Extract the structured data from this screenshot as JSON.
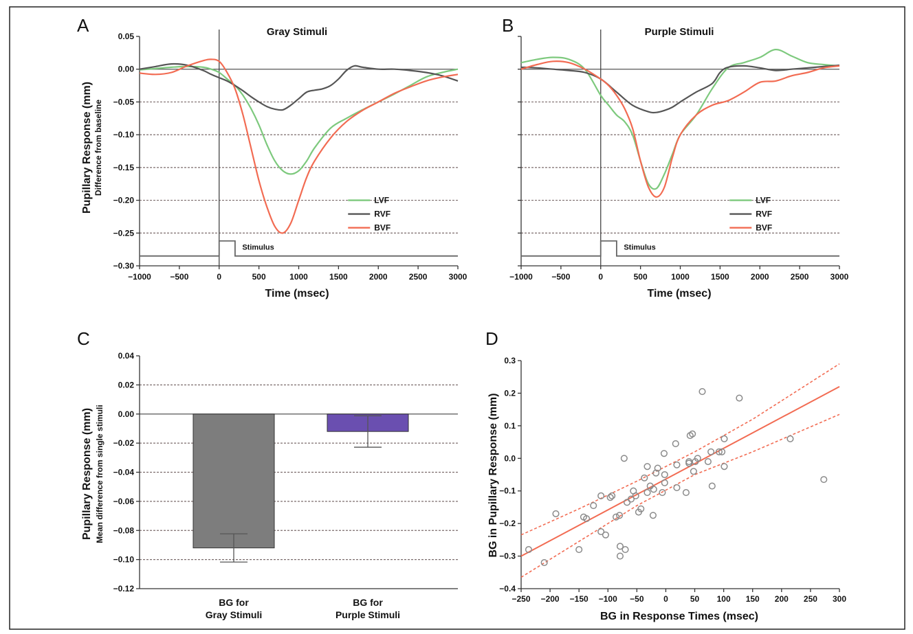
{
  "chart_data": [
    {
      "panel": "A",
      "type": "line",
      "title": "Gray Stimuli",
      "xlabel": "Time (msec)",
      "ylabel": "Pupillary Response (mm)",
      "ylabel_sub": "Difference from baseline",
      "xlim": [
        -1000,
        3000
      ],
      "ylim": [
        -0.3,
        0.05
      ],
      "xticks": [
        "−1000",
        "−500",
        "0",
        "500",
        "1000",
        "1500",
        "2000",
        "2500",
        "3000"
      ],
      "yticks": [
        "0.05",
        "0.00",
        "−0.05",
        "−0.10",
        "−0.15",
        "−0.20",
        "−0.25",
        "−0.30"
      ],
      "grid": true,
      "legend_position": "right",
      "stimulus_label": "Stimulus",
      "series": [
        {
          "name": "LVF",
          "color": "#7dc97d",
          "x": [
            -1000,
            -800,
            -600,
            -400,
            -200,
            -100,
            0,
            100,
            200,
            300,
            400,
            500,
            600,
            700,
            800,
            900,
            1000,
            1100,
            1200,
            1400,
            1600,
            1800,
            2000,
            2200,
            2400,
            2600,
            2800,
            3000
          ],
          "y": [
            -0.001,
            0.001,
            0.003,
            0.004,
            0.003,
            0.0,
            -0.005,
            -0.015,
            -0.025,
            -0.04,
            -0.06,
            -0.085,
            -0.115,
            -0.14,
            -0.155,
            -0.16,
            -0.155,
            -0.14,
            -0.12,
            -0.09,
            -0.075,
            -0.062,
            -0.05,
            -0.038,
            -0.025,
            -0.012,
            -0.005,
            0.0
          ]
        },
        {
          "name": "RVF",
          "color": "#555555",
          "x": [
            -1000,
            -800,
            -600,
            -400,
            -200,
            -100,
            0,
            100,
            200,
            300,
            400,
            500,
            600,
            700,
            800,
            900,
            1000,
            1100,
            1200,
            1300,
            1400,
            1500,
            1600,
            1700,
            1800,
            2000,
            2200,
            2400,
            2600,
            2800,
            3000
          ],
          "y": [
            0.0,
            0.004,
            0.008,
            0.006,
            -0.002,
            -0.008,
            -0.013,
            -0.018,
            -0.025,
            -0.033,
            -0.042,
            -0.05,
            -0.057,
            -0.061,
            -0.062,
            -0.055,
            -0.045,
            -0.035,
            -0.032,
            -0.03,
            -0.025,
            -0.015,
            -0.002,
            0.005,
            0.003,
            0.0,
            0.0,
            -0.002,
            -0.005,
            -0.01,
            -0.018
          ]
        },
        {
          "name": "BVF",
          "color": "#f26b52",
          "x": [
            -1000,
            -800,
            -600,
            -400,
            -200,
            -100,
            0,
            100,
            200,
            300,
            400,
            500,
            600,
            700,
            800,
            900,
            1000,
            1100,
            1200,
            1400,
            1600,
            1800,
            2000,
            2200,
            2400,
            2600,
            2800,
            3000
          ],
          "y": [
            -0.006,
            -0.008,
            -0.005,
            0.005,
            0.013,
            0.015,
            0.012,
            -0.005,
            -0.03,
            -0.07,
            -0.12,
            -0.17,
            -0.21,
            -0.24,
            -0.25,
            -0.235,
            -0.2,
            -0.165,
            -0.14,
            -0.105,
            -0.08,
            -0.063,
            -0.05,
            -0.037,
            -0.027,
            -0.018,
            -0.012,
            -0.008
          ]
        }
      ]
    },
    {
      "panel": "B",
      "type": "line",
      "title": "Purple Stimuli",
      "xlabel": "Time (msec)",
      "xlim": [
        -1000,
        3000
      ],
      "ylim": [
        -0.3,
        0.05
      ],
      "xticks": [
        "−1000",
        "−500",
        "0",
        "500",
        "1000",
        "1500",
        "2000",
        "2500",
        "3000"
      ],
      "grid": true,
      "legend_position": "right",
      "stimulus_label": "Stimulus",
      "series": [
        {
          "name": "LVF",
          "color": "#7dc97d",
          "x": [
            -1000,
            -800,
            -600,
            -400,
            -200,
            0,
            100,
            200,
            300,
            400,
            500,
            600,
            700,
            800,
            900,
            1000,
            1200,
            1400,
            1600,
            1800,
            2000,
            2200,
            2400,
            2600,
            2800,
            3000
          ],
          "y": [
            0.01,
            0.015,
            0.018,
            0.015,
            0.0,
            -0.04,
            -0.055,
            -0.07,
            -0.08,
            -0.1,
            -0.14,
            -0.175,
            -0.182,
            -0.16,
            -0.13,
            -0.1,
            -0.07,
            -0.03,
            0.002,
            0.01,
            0.018,
            0.03,
            0.02,
            0.01,
            0.007,
            0.005
          ]
        },
        {
          "name": "RVF",
          "color": "#555555",
          "x": [
            -1000,
            -800,
            -600,
            -400,
            -200,
            0,
            200,
            400,
            600,
            700,
            800,
            900,
            1000,
            1200,
            1400,
            1500,
            1600,
            1800,
            2000,
            2200,
            2400,
            2600,
            2800,
            3000
          ],
          "y": [
            0.003,
            0.002,
            0.0,
            -0.002,
            -0.005,
            -0.015,
            -0.035,
            -0.055,
            -0.065,
            -0.066,
            -0.063,
            -0.058,
            -0.05,
            -0.035,
            -0.022,
            -0.005,
            0.003,
            0.005,
            0.002,
            -0.002,
            0.0,
            0.002,
            0.004,
            0.006
          ]
        },
        {
          "name": "BVF",
          "color": "#f26b52",
          "x": [
            -1000,
            -800,
            -600,
            -400,
            -200,
            0,
            100,
            200,
            300,
            400,
            500,
            600,
            700,
            800,
            900,
            1000,
            1200,
            1400,
            1600,
            1800,
            2000,
            2200,
            2400,
            2600,
            2800,
            3000
          ],
          "y": [
            0.0,
            0.007,
            0.012,
            0.01,
            0.0,
            -0.015,
            -0.025,
            -0.04,
            -0.06,
            -0.09,
            -0.14,
            -0.18,
            -0.195,
            -0.18,
            -0.135,
            -0.1,
            -0.07,
            -0.055,
            -0.048,
            -0.035,
            -0.02,
            -0.018,
            -0.01,
            -0.005,
            0.002,
            0.005
          ]
        }
      ]
    },
    {
      "panel": "C",
      "type": "bar",
      "ylabel": "Pupillary Response (mm)",
      "ylabel_sub": "Mean difference from single stimuli",
      "categories": [
        "BG for Gray Stimuli",
        "BG for Purple Stimuli"
      ],
      "category_lines": [
        [
          "BG for",
          "Gray Stimuli"
        ],
        [
          "BG for",
          "Purple Stimuli"
        ]
      ],
      "values": [
        -0.092,
        -0.012
      ],
      "errors": [
        0.0097,
        0.0108
      ],
      "colors": [
        "#7d7d7d",
        "#6a4fb0"
      ],
      "ylim": [
        -0.12,
        0.04
      ],
      "yticks": [
        "0.04",
        "0.02",
        "0.00",
        "−0.02",
        "−0.04",
        "−0.06",
        "−0.08",
        "−0.10",
        "−0.12"
      ],
      "grid": true
    },
    {
      "panel": "D",
      "type": "scatter",
      "xlabel": "BG in Response Times (msec)",
      "ylabel": "BG in Pupillary Response (mm)",
      "xlim": [
        -250,
        300
      ],
      "ylim": [
        -0.4,
        0.3
      ],
      "xticks": [
        "−250",
        "−200",
        "−150",
        "−100",
        "−50",
        "0",
        "50",
        "100",
        "150",
        "200",
        "250",
        "300"
      ],
      "yticks": [
        "0.3",
        "0.2",
        "0.1",
        "0.0",
        "−0.1",
        "−0.2",
        "−0.3",
        "−0.4"
      ],
      "points": [
        [
          -237,
          -0.28
        ],
        [
          -210,
          -0.32
        ],
        [
          -190,
          -0.17
        ],
        [
          -150,
          -0.28
        ],
        [
          -142,
          -0.18
        ],
        [
          -137,
          -0.185
        ],
        [
          -125,
          -0.145
        ],
        [
          -112,
          -0.115
        ],
        [
          -112,
          -0.225
        ],
        [
          -104,
          -0.235
        ],
        [
          -96,
          -0.12
        ],
        [
          -93,
          -0.115
        ],
        [
          -86,
          -0.18
        ],
        [
          -80,
          -0.175
        ],
        [
          -79,
          -0.27
        ],
        [
          -79,
          -0.3
        ],
        [
          -72,
          0.0
        ],
        [
          -70,
          -0.28
        ],
        [
          -67,
          -0.135
        ],
        [
          -60,
          -0.125
        ],
        [
          -56,
          -0.1
        ],
        [
          -52,
          -0.115
        ],
        [
          -47,
          -0.165
        ],
        [
          -43,
          -0.155
        ],
        [
          -37,
          -0.06
        ],
        [
          -32,
          -0.105
        ],
        [
          -32,
          -0.025
        ],
        [
          -27,
          -0.085
        ],
        [
          -22,
          -0.175
        ],
        [
          -21,
          -0.095
        ],
        [
          -17,
          -0.045
        ],
        [
          -14,
          -0.03
        ],
        [
          -6,
          -0.105
        ],
        [
          -3,
          0.015
        ],
        [
          -2,
          -0.05
        ],
        [
          -2,
          -0.075
        ],
        [
          17,
          0.045
        ],
        [
          19,
          -0.02
        ],
        [
          19,
          -0.09
        ],
        [
          35,
          -0.105
        ],
        [
          40,
          -0.015
        ],
        [
          40,
          -0.01
        ],
        [
          42,
          0.07
        ],
        [
          46,
          0.075
        ],
        [
          48,
          -0.04
        ],
        [
          51,
          -0.01
        ],
        [
          55,
          0.0
        ],
        [
          63,
          0.205
        ],
        [
          73,
          -0.01
        ],
        [
          78,
          0.02
        ],
        [
          80,
          -0.085
        ],
        [
          92,
          0.02
        ],
        [
          97,
          0.02
        ],
        [
          101,
          0.06
        ],
        [
          101,
          -0.025
        ],
        [
          127,
          0.185
        ],
        [
          215,
          0.06
        ],
        [
          273,
          -0.065
        ]
      ],
      "fit_line": {
        "x": [
          -250,
          300
        ],
        "y": [
          -0.3,
          0.22
        ]
      },
      "ci_upper": {
        "x": [
          -250,
          -150,
          -50,
          50,
          150,
          300
        ],
        "y": [
          -0.235,
          -0.155,
          -0.07,
          0.02,
          0.12,
          0.29
        ]
      },
      "ci_lower": {
        "x": [
          -250,
          -150,
          -50,
          50,
          150,
          300
        ],
        "y": [
          -0.365,
          -0.255,
          -0.145,
          -0.05,
          0.02,
          0.135
        ]
      }
    }
  ],
  "panel_labels": {
    "A": "A",
    "B": "B",
    "C": "C",
    "D": "D"
  },
  "legend_labels": [
    "LVF",
    "RVF",
    "BVF"
  ]
}
